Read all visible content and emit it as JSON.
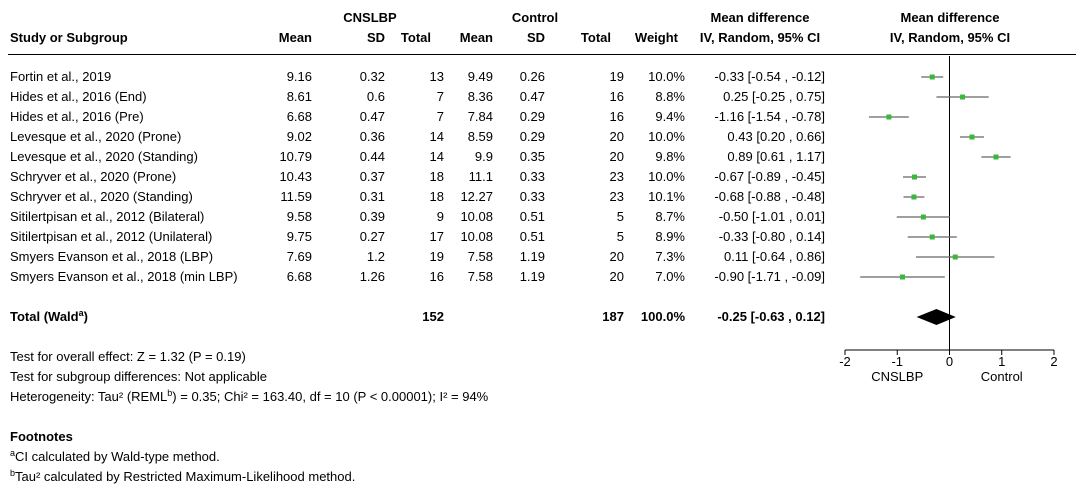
{
  "headers": {
    "group1": "CNSLBP",
    "group2": "Control",
    "md_top": "Mean difference",
    "md_plot_top": "Mean difference",
    "study": "Study or Subgroup",
    "mean1": "Mean",
    "sd1": "SD",
    "total1": "Total",
    "mean2": "Mean",
    "sd2": "SD",
    "total2": "Total",
    "weight": "Weight",
    "ci": "IV, Random, 95% CI",
    "plot_ci": "IV, Random, 95% CI"
  },
  "studies": [
    {
      "name": "Fortin et al., 2019",
      "mean1": "9.16",
      "sd1": "0.32",
      "n1": "13",
      "mean2": "9.49",
      "sd2": "0.26",
      "n2": "19",
      "weight": "10.0%",
      "md_text": "-0.33 [-0.54 , -0.12]"
    },
    {
      "name": "Hides et al., 2016 (End)",
      "mean1": "8.61",
      "sd1": "0.6",
      "n1": "7",
      "mean2": "8.36",
      "sd2": "0.47",
      "n2": "16",
      "weight": "8.8%",
      "md_text": "0.25 [-0.25 , 0.75]"
    },
    {
      "name": "Hides et al., 2016 (Pre)",
      "mean1": "6.68",
      "sd1": "0.47",
      "n1": "7",
      "mean2": "7.84",
      "sd2": "0.29",
      "n2": "16",
      "weight": "9.4%",
      "md_text": "-1.16 [-1.54 , -0.78]"
    },
    {
      "name": "Levesque et al., 2020 (Prone)",
      "mean1": "9.02",
      "sd1": "0.36",
      "n1": "14",
      "mean2": "8.59",
      "sd2": "0.29",
      "n2": "20",
      "weight": "10.0%",
      "md_text": "0.43 [0.20 , 0.66]"
    },
    {
      "name": "Levesque et al., 2020 (Standing)",
      "mean1": "10.79",
      "sd1": "0.44",
      "n1": "14",
      "mean2": "9.9",
      "sd2": "0.35",
      "n2": "20",
      "weight": "9.8%",
      "md_text": "0.89 [0.61 , 1.17]"
    },
    {
      "name": "Schryver et al., 2020 (Prone)",
      "mean1": "10.43",
      "sd1": "0.37",
      "n1": "18",
      "mean2": "11.1",
      "sd2": "0.33",
      "n2": "23",
      "weight": "10.0%",
      "md_text": "-0.67 [-0.89 , -0.45]"
    },
    {
      "name": "Schryver et al., 2020 (Standing)",
      "mean1": "11.59",
      "sd1": "0.31",
      "n1": "18",
      "mean2": "12.27",
      "sd2": "0.33",
      "n2": "23",
      "weight": "10.1%",
      "md_text": "-0.68 [-0.88 , -0.48]"
    },
    {
      "name": "Sitilertpisan et al., 2012 (Bilateral)",
      "mean1": "9.58",
      "sd1": "0.39",
      "n1": "9",
      "mean2": "10.08",
      "sd2": "0.51",
      "n2": "5",
      "weight": "8.7%",
      "md_text": "-0.50 [-1.01 , 0.01]"
    },
    {
      "name": "Sitilertpisan et al., 2012 (Unilateral)",
      "mean1": "9.75",
      "sd1": "0.27",
      "n1": "17",
      "mean2": "10.08",
      "sd2": "0.51",
      "n2": "5",
      "weight": "8.9%",
      "md_text": "-0.33 [-0.80 , 0.14]"
    },
    {
      "name": "Smyers Evanson et al., 2018 (LBP)",
      "mean1": "7.69",
      "sd1": "1.2",
      "n1": "19",
      "mean2": "7.58",
      "sd2": "1.19",
      "n2": "20",
      "weight": "7.3%",
      "md_text": "0.11 [-0.64 , 0.86]"
    },
    {
      "name": "Smyers Evanson et al., 2018 (min LBP)",
      "mean1": "6.68",
      "sd1": "1.26",
      "n1": "16",
      "mean2": "7.58",
      "sd2": "1.19",
      "n2": "20",
      "weight": "7.0%",
      "md_text": "-0.90 [-1.71 , -0.09]"
    }
  ],
  "total": {
    "label": "Total (Wald",
    "label_sup": "a",
    "label_end": ")",
    "n1": "152",
    "n2": "187",
    "weight": "100.0%",
    "md_text": "-0.25 [-0.63 , 0.12]"
  },
  "tests": {
    "overall": "Test for overall effect: Z = 1.32 (P = 0.19)",
    "subgroup": "Test for subgroup differences: Not applicable",
    "heterogeneity_pre": "Heterogeneity: Tau² (REML",
    "heterogeneity_sup": "b",
    "heterogeneity_post": ") = 0.35; Chi² = 163.40, df = 10 (P < 0.00001); I² = 94%"
  },
  "footnotes": {
    "title": "Footnotes",
    "a_mark": "a",
    "a_text": "CI calculated by Wald-type method.",
    "b_mark": "b",
    "b_text": "Tau² calculated by Restricted Maximum-Likelihood method."
  },
  "chart_data": {
    "type": "forest",
    "xlim": [
      -2,
      2
    ],
    "ticks": [
      -2,
      -1,
      0,
      1,
      2
    ],
    "tick_labels": [
      "-2",
      "-1",
      "0",
      "1",
      "2"
    ],
    "favours_left": "CNSLBP",
    "favours_right": "Control",
    "marker_color": "#3cb73c",
    "ci_color": "#666666",
    "estimates": [
      {
        "md": -0.33,
        "lo": -0.54,
        "hi": -0.12
      },
      {
        "md": 0.25,
        "lo": -0.25,
        "hi": 0.75
      },
      {
        "md": -1.16,
        "lo": -1.54,
        "hi": -0.78
      },
      {
        "md": 0.43,
        "lo": 0.2,
        "hi": 0.66
      },
      {
        "md": 0.89,
        "lo": 0.61,
        "hi": 1.17
      },
      {
        "md": -0.67,
        "lo": -0.89,
        "hi": -0.45
      },
      {
        "md": -0.68,
        "lo": -0.88,
        "hi": -0.48
      },
      {
        "md": -0.5,
        "lo": -1.01,
        "hi": 0.01
      },
      {
        "md": -0.33,
        "lo": -0.8,
        "hi": 0.14
      },
      {
        "md": 0.11,
        "lo": -0.64,
        "hi": 0.86
      },
      {
        "md": -0.9,
        "lo": -1.71,
        "hi": -0.09
      }
    ],
    "total_estimate": {
      "md": -0.25,
      "lo": -0.63,
      "hi": 0.12
    }
  }
}
